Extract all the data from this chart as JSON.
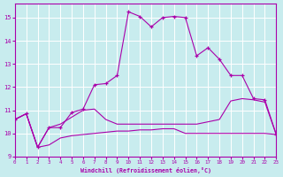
{
  "bg_color": "#c8ecee",
  "line_color": "#aa00aa",
  "xlim": [
    0,
    23
  ],
  "ylim": [
    9,
    15.6
  ],
  "yticks": [
    9,
    10,
    11,
    12,
    13,
    14,
    15
  ],
  "xticks": [
    0,
    1,
    2,
    3,
    4,
    5,
    6,
    7,
    8,
    9,
    10,
    11,
    12,
    13,
    14,
    15,
    16,
    17,
    18,
    19,
    20,
    21,
    22,
    23
  ],
  "xlabel": "Windchill (Refroidissement éolien,°C)",
  "line_bot_x": [
    0,
    1,
    2,
    3,
    4,
    5,
    6,
    7,
    8,
    9,
    10,
    11,
    12,
    13,
    14,
    15,
    16,
    17,
    18,
    19,
    20,
    21,
    22,
    23
  ],
  "line_bot_y": [
    10.6,
    10.85,
    9.4,
    9.5,
    9.8,
    9.9,
    9.95,
    10.0,
    10.05,
    10.1,
    10.1,
    10.15,
    10.15,
    10.2,
    10.2,
    10.0,
    10.0,
    10.0,
    10.0,
    10.0,
    10.0,
    10.0,
    10.0,
    9.95
  ],
  "line_mid_x": [
    0,
    1,
    2,
    3,
    4,
    5,
    6,
    7,
    8,
    9,
    10,
    11,
    12,
    13,
    14,
    15,
    16,
    17,
    18,
    19,
    20,
    21,
    22,
    23
  ],
  "line_mid_y": [
    10.6,
    10.85,
    9.4,
    10.25,
    10.4,
    10.7,
    11.0,
    11.05,
    10.6,
    10.4,
    10.4,
    10.4,
    10.4,
    10.4,
    10.4,
    10.4,
    10.4,
    10.5,
    10.6,
    11.4,
    11.5,
    11.45,
    11.35,
    9.95
  ],
  "line_top_x": [
    0,
    1,
    2,
    3,
    4,
    5,
    6,
    7,
    8,
    9,
    10,
    11,
    12,
    13,
    14,
    15,
    16,
    17,
    18,
    19,
    20,
    21,
    22,
    23
  ],
  "line_top_y": [
    10.6,
    10.85,
    9.4,
    10.25,
    10.25,
    10.9,
    11.05,
    12.1,
    12.15,
    12.5,
    15.25,
    15.05,
    14.6,
    15.0,
    15.05,
    15.0,
    13.35,
    13.7,
    13.2,
    12.5,
    12.5,
    11.5,
    11.45,
    9.95
  ]
}
